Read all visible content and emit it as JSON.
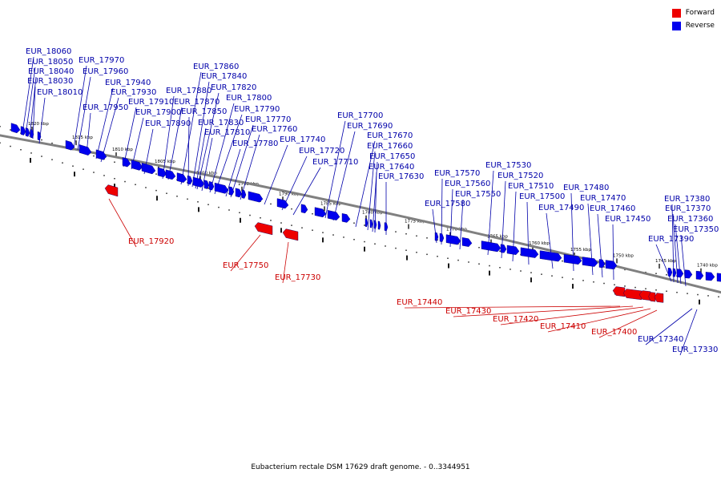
{
  "title": "Eubacterium rectale DSM 17629 draft genome. - 0..3344951",
  "legend": {
    "forward_label": "Forward",
    "reverse_label": "Reverse",
    "forward_color": "#ee0000",
    "reverse_color": "#0000ee"
  },
  "ticks": [
    {
      "label": "1820 kbp"
    },
    {
      "label": "1815 kbp"
    },
    {
      "label": "1810 kbp"
    },
    {
      "label": "1805 kbp"
    },
    {
      "label": "1800 kbp"
    },
    {
      "label": "1795 kbp"
    },
    {
      "label": "1790 kbp"
    },
    {
      "label": "1785 kbp"
    },
    {
      "label": "1780 kbp"
    },
    {
      "label": "1775 kbp"
    },
    {
      "label": "1770 kbp"
    },
    {
      "label": "1765 kbp"
    },
    {
      "label": "1760 kbp"
    },
    {
      "label": "1755 kbp"
    },
    {
      "label": "1750 kbp"
    },
    {
      "label": "1745 kbp"
    },
    {
      "label": "1740 kbp"
    }
  ],
  "genes_reverse": [
    "EUR_18060",
    "EUR_18050",
    "EUR_18040",
    "EUR_18030",
    "EUR_18010",
    "EUR_17970",
    "EUR_17960",
    "EUR_17950",
    "EUR_17940",
    "EUR_17930",
    "EUR_17910",
    "EUR_17900",
    "EUR_17890",
    "EUR_17880",
    "EUR_17870",
    "EUR_17860",
    "EUR_17850",
    "EUR_17840",
    "EUR_17830",
    "EUR_17820",
    "EUR_17810",
    "EUR_17800",
    "EUR_17790",
    "EUR_17780",
    "EUR_17770",
    "EUR_17760",
    "EUR_17740",
    "EUR_17720",
    "EUR_17710",
    "EUR_17700",
    "EUR_17690",
    "EUR_17670",
    "EUR_17660",
    "EUR_17650",
    "EUR_17640",
    "EUR_17630",
    "EUR_17580",
    "EUR_17570",
    "EUR_17560",
    "EUR_17550",
    "EUR_17530",
    "EUR_17520",
    "EUR_17510",
    "EUR_17500",
    "EUR_17490",
    "EUR_17480",
    "EUR_17470",
    "EUR_17460",
    "EUR_17450",
    "EUR_17390",
    "EUR_17380",
    "EUR_17370",
    "EUR_17360",
    "EUR_17350",
    "EUR_17340",
    "EUR_17330"
  ],
  "genes_forward": [
    "EUR_17920",
    "EUR_17750",
    "EUR_17730",
    "EUR_17440",
    "EUR_17430",
    "EUR_17420",
    "EUR_17410",
    "EUR_17400"
  ]
}
